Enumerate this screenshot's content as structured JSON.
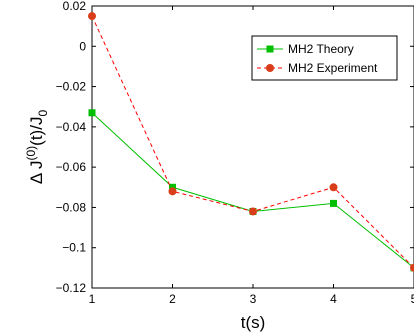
{
  "chart_data": {
    "type": "line",
    "xlabel": "t(s)",
    "ylabel": "Δ J(0)(t)/J0",
    "ylabel_parts": {
      "delta": "Δ J",
      "sup": "(0)",
      "mid": "(t)/J",
      "sub": "0"
    },
    "xlim": [
      1,
      5
    ],
    "ylim": [
      -0.12,
      0.02
    ],
    "x_ticks": [
      1,
      2,
      3,
      4,
      5
    ],
    "x_tick_labels": [
      "1",
      "2",
      "3",
      "4",
      "5"
    ],
    "y_ticks": [
      -0.12,
      -0.1,
      -0.08,
      -0.06,
      -0.04,
      -0.02,
      0,
      0.02
    ],
    "y_tick_labels": [
      "−0.12",
      "−0.1",
      "−0.08",
      "−0.06",
      "−0.04",
      "−0.02",
      "0",
      "0.02"
    ],
    "grid": false,
    "legend_position": "top-right",
    "series": [
      {
        "name": "MH2 Theory",
        "x": [
          1,
          2,
          3,
          4,
          5
        ],
        "values": [
          -0.033,
          -0.07,
          -0.082,
          -0.078,
          -0.11
        ],
        "color": "#00bf00",
        "line_style": "solid",
        "marker": "square"
      },
      {
        "name": "MH2 Experiment",
        "x": [
          1,
          2,
          3,
          4,
          5
        ],
        "values": [
          0.015,
          -0.072,
          -0.082,
          -0.07,
          -0.11
        ],
        "color": "#d93d1a",
        "line_color": "#ff0000",
        "line_style": "dashed",
        "marker": "circle"
      }
    ]
  }
}
